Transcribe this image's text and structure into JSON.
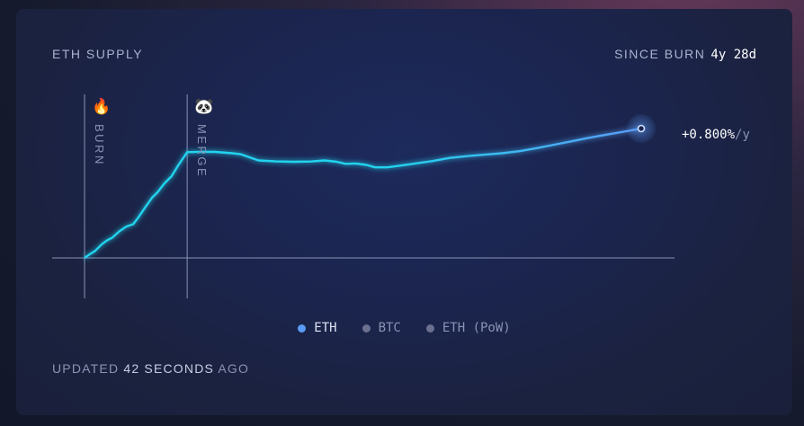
{
  "header": {
    "title": "ETH SUPPLY",
    "since_label": "SINCE BURN",
    "since_value": "4y 28d"
  },
  "rate": {
    "value": "+0.800%",
    "unit": "/y"
  },
  "markers": [
    {
      "label": "BURN",
      "icon": "fire-icon",
      "glyph": "🔥"
    },
    {
      "label": "MERGE",
      "icon": "panda-icon",
      "glyph": "🐼"
    }
  ],
  "legend": [
    {
      "label": "ETH",
      "color": "#5b9cf6",
      "active": true
    },
    {
      "label": "BTC",
      "color": "#6b7090",
      "active": false
    },
    {
      "label": "ETH (PoW)",
      "color": "#6b7090",
      "active": false
    }
  ],
  "footer": {
    "prefix": "UPDATED",
    "value": "42 SECONDS",
    "suffix": "AGO"
  },
  "colors": {
    "line_start": "#22d3ee",
    "line_end": "#5b9cf6",
    "axis": "#8a93b5"
  },
  "chart_data": {
    "type": "line",
    "series": [
      {
        "name": "ETH",
        "points": [
          [
            0.0,
            0.0
          ],
          [
            0.03,
            3.5
          ],
          [
            0.06,
            6.6
          ],
          [
            0.1,
            13.2
          ],
          [
            0.13,
            16.9
          ],
          [
            0.16,
            19.5
          ],
          [
            0.2,
            25.5
          ],
          [
            0.24,
            30.1
          ],
          [
            0.28,
            32.4
          ],
          [
            0.31,
            39.0
          ],
          [
            0.35,
            48.9
          ],
          [
            0.39,
            58.1
          ],
          [
            0.42,
            63.0
          ],
          [
            0.46,
            71.6
          ],
          [
            0.5,
            78.3
          ],
          [
            0.54,
            89.2
          ],
          [
            0.59,
            101.4
          ],
          [
            0.65,
            101.7
          ],
          [
            0.75,
            101.7
          ],
          [
            0.85,
            100.4
          ],
          [
            0.9,
            99.4
          ],
          [
            1.0,
            93.5
          ],
          [
            1.1,
            92.6
          ],
          [
            1.2,
            92.2
          ],
          [
            1.3,
            92.5
          ],
          [
            1.38,
            93.5
          ],
          [
            1.45,
            92.2
          ],
          [
            1.5,
            90.2
          ],
          [
            1.56,
            90.6
          ],
          [
            1.62,
            89.2
          ],
          [
            1.67,
            86.9
          ],
          [
            1.74,
            86.9
          ],
          [
            1.8,
            88.2
          ],
          [
            1.9,
            90.6
          ],
          [
            2.0,
            92.9
          ],
          [
            2.1,
            95.9
          ],
          [
            2.2,
            97.6
          ],
          [
            2.3,
            99.0
          ],
          [
            2.4,
            100.4
          ],
          [
            2.5,
            102.4
          ],
          [
            2.6,
            105.3
          ],
          [
            2.7,
            108.6
          ],
          [
            2.8,
            111.9
          ],
          [
            2.9,
            115.2
          ],
          [
            3.0,
            118.2
          ],
          [
            3.1,
            121.1
          ],
          [
            3.2,
            124.1
          ]
        ]
      }
    ],
    "events": [
      {
        "name": "BURN",
        "x": 0.0
      },
      {
        "name": "MERGE",
        "x": 0.59
      }
    ],
    "xlim": [
      0,
      3.2
    ],
    "ylim": [
      -40,
      150
    ],
    "annotation": "+0.800%/y",
    "grid": false
  }
}
